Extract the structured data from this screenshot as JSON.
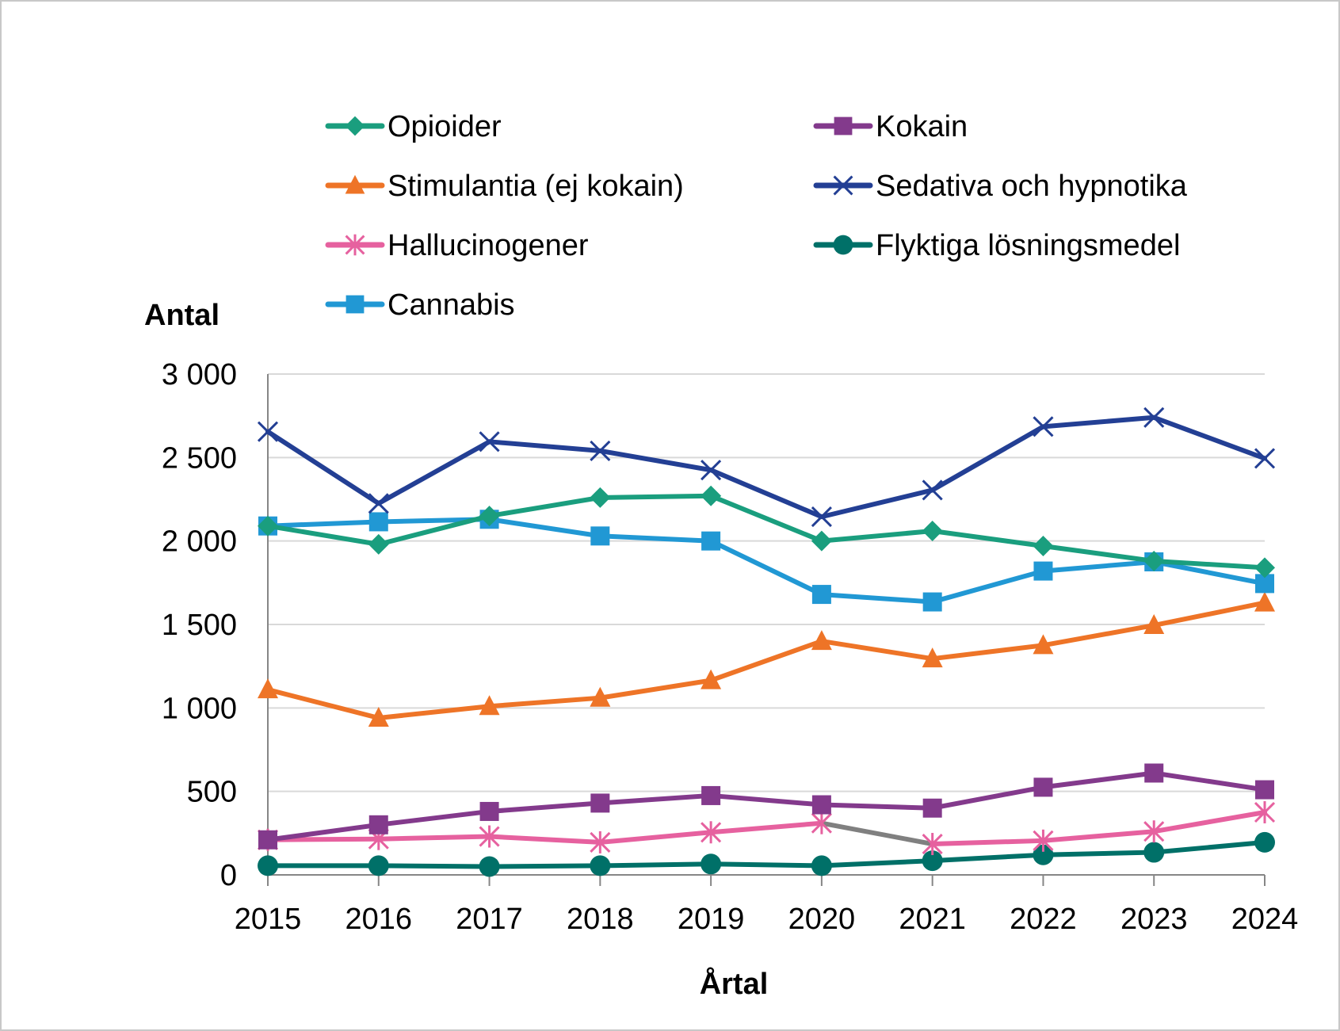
{
  "chart_data": {
    "type": "line",
    "title": "",
    "xlabel": "Årtal",
    "ylabel": "Antal",
    "ylim": [
      0,
      3000
    ],
    "yticks": [
      0,
      500,
      1000,
      1500,
      2000,
      2500,
      3000
    ],
    "ytick_labels": [
      "0",
      "500",
      "1 000",
      "1 500",
      "2 000",
      "2 500",
      "3 000"
    ],
    "x": [
      "2015",
      "2016",
      "2017",
      "2018",
      "2019",
      "2020",
      "2021",
      "2022",
      "2023",
      "2024"
    ],
    "grid": "horizontal",
    "legend_position": "top",
    "series": [
      {
        "name": "Opioider",
        "color": "#1A9E7E",
        "marker": "diamond",
        "values": [
          2090,
          1980,
          2150,
          2260,
          2270,
          2000,
          2060,
          1970,
          1880,
          1840
        ]
      },
      {
        "name": "Kokain",
        "color": "#833A8C",
        "marker": "square",
        "values": [
          210,
          300,
          380,
          430,
          475,
          420,
          400,
          525,
          610,
          510
        ]
      },
      {
        "name": "Stimulantia (ej kokain)",
        "color": "#EE7427",
        "marker": "triangle",
        "values": [
          1110,
          940,
          1010,
          1060,
          1165,
          1400,
          1295,
          1375,
          1495,
          1630
        ]
      },
      {
        "name": "Sedativa och hypnotika",
        "color": "#233F94",
        "marker": "x",
        "values": [
          2655,
          2225,
          2595,
          2540,
          2425,
          2145,
          2305,
          2685,
          2740,
          2495
        ]
      },
      {
        "name": "Hallucinogener",
        "color": "#E6619F",
        "marker": "asterisk",
        "values": [
          210,
          215,
          230,
          195,
          255,
          310,
          185,
          205,
          260,
          375
        ],
        "grey_segment_after": "2020",
        "grey_color": "#808080"
      },
      {
        "name": "Flyktiga lösningsmedel",
        "color": "#007068",
        "marker": "circle",
        "values": [
          55,
          55,
          50,
          55,
          65,
          55,
          85,
          120,
          135,
          195
        ]
      },
      {
        "name": "Cannabis",
        "color": "#2198D4",
        "marker": "square",
        "values": [
          2090,
          2115,
          2130,
          2030,
          2000,
          1680,
          1635,
          1820,
          1875,
          1745
        ]
      }
    ]
  }
}
